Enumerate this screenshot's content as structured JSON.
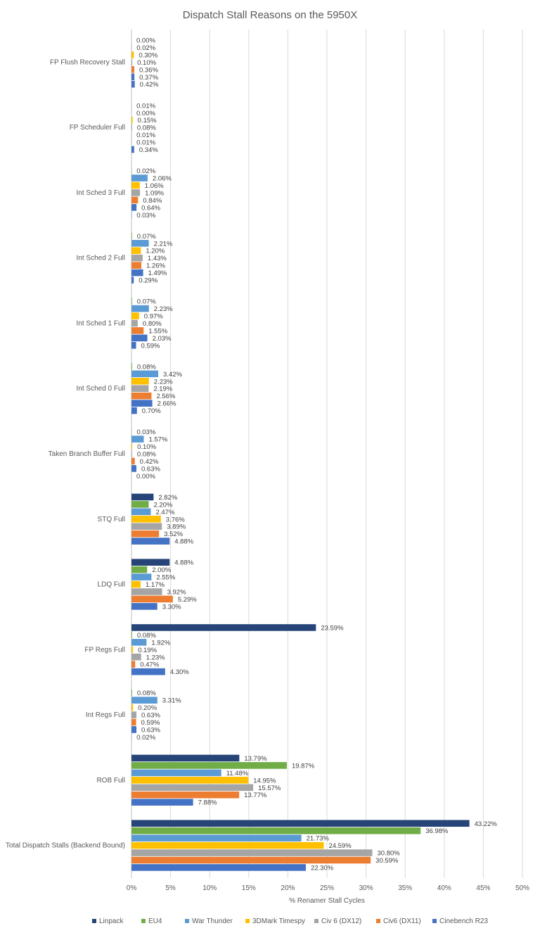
{
  "chart_data": {
    "type": "bar",
    "orientation": "horizontal",
    "title": "Dispatch Stall Reasons on the 5950X",
    "xlabel": "% Renamer Stall Cycles",
    "ylabel": "",
    "xlim": [
      0,
      50
    ],
    "x_ticks": [
      "0%",
      "5%",
      "10%",
      "15%",
      "20%",
      "25%",
      "30%",
      "35%",
      "40%",
      "45%",
      "50%"
    ],
    "grid": "vertical",
    "legend_position": "bottom",
    "categories": [
      "FP Flush Recovery Stall",
      "FP Scheduler Full",
      "Int Sched 3 Full",
      "Int Sched 2 Full",
      "Int Sched 1 Full",
      "Int Sched 0 Full",
      "Taken Branch Buffer Full",
      "STQ Full",
      "LDQ Full",
      "FP Regs Full",
      "Int Regs Full",
      "ROB Full",
      "Total Dispatch Stalls (Backend Bound)"
    ],
    "series": [
      {
        "name": "Linpack",
        "color": "#264478",
        "values": [
          null,
          null,
          null,
          null,
          null,
          null,
          null,
          2.82,
          4.88,
          23.59,
          null,
          13.79,
          43.22
        ],
        "labels": [
          "",
          "",
          "",
          "",
          "",
          "",
          "",
          "2.82%",
          "4.88%",
          "23.59%",
          "",
          "13.79%",
          "43.22%"
        ]
      },
      {
        "name": "EU4",
        "color": "#70AD47",
        "values": [
          0.0,
          0.01,
          0.02,
          0.07,
          0.07,
          0.08,
          0.03,
          2.2,
          2.0,
          0.08,
          0.08,
          19.87,
          36.98
        ],
        "labels": [
          "0.00%",
          "0.01%",
          "0.02%",
          "0.07%",
          "0.07%",
          "0.08%",
          "0.03%",
          "2.20%",
          "2.00%",
          "0.08%",
          "0.08%",
          "19.87%",
          "36.98%"
        ]
      },
      {
        "name": "War Thunder",
        "color": "#5B9BD5",
        "values": [
          0.02,
          0.0,
          2.06,
          2.21,
          2.23,
          3.42,
          1.57,
          2.47,
          2.55,
          1.92,
          3.31,
          11.48,
          21.73
        ],
        "labels": [
          "0.02%",
          "0.00%",
          "2.06%",
          "2.21%",
          "2.23%",
          "3.42%",
          "1.57%",
          "2.47%",
          "2.55%",
          "1.92%",
          "3.31%",
          "11.48%",
          "21.73%"
        ]
      },
      {
        "name": "3DMark Timespy",
        "color": "#FFC000",
        "values": [
          0.3,
          0.15,
          1.06,
          1.2,
          0.97,
          2.23,
          0.1,
          3.76,
          1.17,
          0.19,
          0.2,
          14.95,
          24.59
        ],
        "labels": [
          "0.30%",
          "0.15%",
          "1.06%",
          "1.20%",
          "0.97%",
          "2.23%",
          "0.10%",
          "3.76%",
          "1.17%",
          "0.19%",
          "0.20%",
          "14.95%",
          "24.59%"
        ]
      },
      {
        "name": "Civ 6 (DX12)",
        "color": "#A5A5A5",
        "values": [
          0.1,
          0.08,
          1.09,
          1.43,
          0.8,
          2.19,
          0.08,
          3.89,
          3.92,
          1.23,
          0.63,
          15.57,
          30.8
        ],
        "labels": [
          "0.10%",
          "0.08%",
          "1.09%",
          "1.43%",
          "0.80%",
          "2.19%",
          "0.08%",
          "3.89%",
          "3.92%",
          "1.23%",
          "0.63%",
          "15.57%",
          "30.80%"
        ]
      },
      {
        "name": "Civ6 (DX11)",
        "color": "#ED7D31",
        "values": [
          0.36,
          0.01,
          0.84,
          1.26,
          1.55,
          2.56,
          0.42,
          3.52,
          5.29,
          0.47,
          0.59,
          13.77,
          30.59
        ],
        "labels": [
          "0.36%",
          "0.01%",
          "0.84%",
          "1.26%",
          "1.55%",
          "2.56%",
          "0.42%",
          "3.52%",
          "5.29%",
          "0.47%",
          "0.59%",
          "13.77%",
          "30.59%"
        ]
      },
      {
        "name": "Cinebench R23",
        "color": "#4472C4",
        "values": [
          0.37,
          0.01,
          0.64,
          1.49,
          2.03,
          2.66,
          0.63,
          4.88,
          3.3,
          4.3,
          0.63,
          7.88,
          22.3
        ],
        "labels": [
          "0.37%",
          "0.01%",
          "0.64%",
          "1.49%",
          "2.03%",
          "2.66%",
          "0.63%",
          "4.88%",
          "3.30%",
          "4.30%",
          "0.63%",
          "7.88%",
          "22.30%"
        ]
      }
    ],
    "extra_labels": [
      {
        "category": "FP Flush Recovery Stall",
        "value": 0.42,
        "label": "0.42%",
        "color": "#4472C4"
      },
      {
        "category": "FP Scheduler Full",
        "value": 0.34,
        "label": "0.34%",
        "color": "#4472C4"
      },
      {
        "category": "Int Sched 3 Full",
        "value": 0.03,
        "label": "0.03%",
        "color": "#4472C4"
      },
      {
        "category": "Int Sched 2 Full",
        "value": 0.29,
        "label": "0.29%",
        "color": "#4472C4"
      },
      {
        "category": "Int Sched 1 Full",
        "value": 0.59,
        "label": "0.59%",
        "color": "#4472C4"
      },
      {
        "category": "Int Sched 0 Full",
        "value": 0.7,
        "label": "0.70%",
        "color": "#4472C4"
      },
      {
        "category": "Taken Branch Buffer Full",
        "value": 0.0,
        "label": "0.00%",
        "color": "#4472C4"
      },
      {
        "category": "Int Regs Full",
        "value": 0.02,
        "label": "0.02%",
        "color": "#4472C4"
      }
    ]
  }
}
